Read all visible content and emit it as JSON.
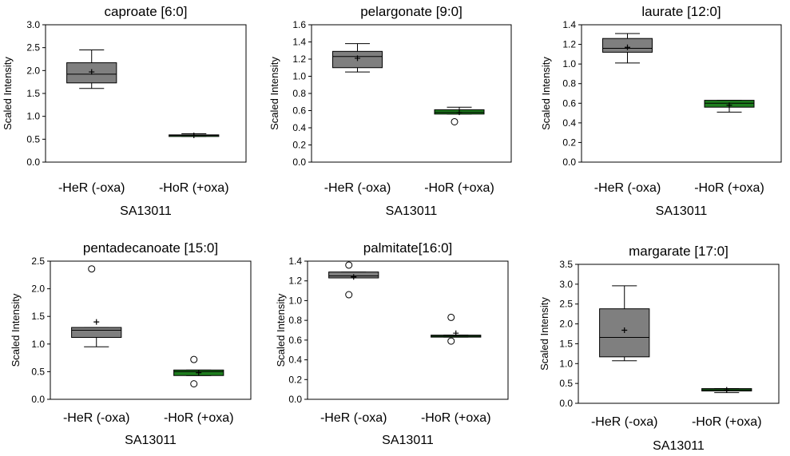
{
  "colors": {
    "group1": "#7f7f7f",
    "group2": "#1e7d1e",
    "axis": "#000000"
  },
  "chart_data": [
    {
      "type": "box",
      "title": "caproate [6:0]",
      "xlabel": "SA13011",
      "ylabel": "Scaled Intensity",
      "categories": [
        "-HeR (-oxa)",
        "-HoR (+oxa)"
      ],
      "ylim": [
        0,
        3.0
      ],
      "yticks": [
        "0.0",
        "0.5",
        "1.0",
        "1.5",
        "2.0",
        "2.5",
        "3.0"
      ],
      "boxes": [
        {
          "min": 1.61,
          "q1": 1.73,
          "median": 1.92,
          "q3": 2.17,
          "max": 2.45,
          "mean": 1.97,
          "outliers": []
        },
        {
          "min": 0.56,
          "q1": 0.575,
          "median": 0.585,
          "q3": 0.595,
          "max": 0.62,
          "mean": 0.585,
          "outliers": []
        }
      ]
    },
    {
      "type": "box",
      "title": "pelargonate [9:0]",
      "xlabel": "SA13011",
      "ylabel": "Scaled Intensity",
      "categories": [
        "-HeR (-oxa)",
        "-HoR (+oxa)"
      ],
      "ylim": [
        0,
        1.6
      ],
      "yticks": [
        "0.0",
        "0.2",
        "0.4",
        "0.6",
        "0.8",
        "1.0",
        "1.2",
        "1.4",
        "1.6"
      ],
      "boxes": [
        {
          "min": 1.05,
          "q1": 1.1,
          "median": 1.23,
          "q3": 1.29,
          "max": 1.38,
          "mean": 1.21,
          "outliers": []
        },
        {
          "min": 0.56,
          "q1": 0.56,
          "median": 0.58,
          "q3": 0.61,
          "max": 0.64,
          "mean": 0.58,
          "outliers": [
            0.47
          ]
        }
      ]
    },
    {
      "type": "box",
      "title": "laurate [12:0]",
      "xlabel": "SA13011",
      "ylabel": "Scaled Intensity",
      "categories": [
        "-HeR (-oxa)",
        "-HoR (+oxa)"
      ],
      "ylim": [
        0,
        1.4
      ],
      "yticks": [
        "0.0",
        "0.2",
        "0.4",
        "0.6",
        "0.8",
        "1.0",
        "1.2",
        "1.4"
      ],
      "boxes": [
        {
          "min": 1.01,
          "q1": 1.12,
          "median": 1.16,
          "q3": 1.26,
          "max": 1.31,
          "mean": 1.17,
          "outliers": []
        },
        {
          "min": 0.51,
          "q1": 0.56,
          "median": 0.6,
          "q3": 0.63,
          "max": 0.63,
          "mean": 0.58,
          "outliers": []
        }
      ]
    },
    {
      "type": "box",
      "title": "pentadecanoate [15:0]",
      "xlabel": "SA13011",
      "ylabel": "Scaled Intensity",
      "categories": [
        "-HeR (-oxa)",
        "-HoR (+oxa)"
      ],
      "ylim": [
        0,
        2.5
      ],
      "yticks": [
        "0.0",
        "0.5",
        "1.0",
        "1.5",
        "2.0",
        "2.5"
      ],
      "boxes": [
        {
          "min": 0.95,
          "q1": 1.12,
          "median": 1.25,
          "q3": 1.3,
          "max": 1.3,
          "mean": 1.4,
          "outliers": [
            2.36
          ]
        },
        {
          "min": 0.43,
          "q1": 0.43,
          "median": 0.5,
          "q3": 0.53,
          "max": 0.53,
          "mean": 0.48,
          "outliers": [
            0.72,
            0.28
          ]
        }
      ]
    },
    {
      "type": "box",
      "title": "palmitate[16:0]",
      "xlabel": "SA13011",
      "ylabel": "Scaled Intensity",
      "categories": [
        "-HeR (-oxa)",
        "-HoR (+oxa)"
      ],
      "ylim": [
        0,
        1.4
      ],
      "yticks": [
        "0.0",
        "0.2",
        "0.4",
        "0.6",
        "0.8",
        "1.0",
        "1.2",
        "1.4"
      ],
      "boxes": [
        {
          "min": 1.23,
          "q1": 1.23,
          "median": 1.25,
          "q3": 1.29,
          "max": 1.29,
          "mean": 1.24,
          "outliers": [
            1.36,
            1.06
          ]
        },
        {
          "min": 0.63,
          "q1": 0.63,
          "median": 0.64,
          "q3": 0.65,
          "max": 0.65,
          "mean": 0.67,
          "outliers": [
            0.83,
            0.59
          ]
        }
      ]
    },
    {
      "type": "box",
      "title": "margarate [17:0]",
      "xlabel": "SA13011",
      "ylabel": "Scaled Intensity",
      "categories": [
        "-HeR (-oxa)",
        "-HoR (+oxa)"
      ],
      "ylim": [
        0,
        3.5
      ],
      "yticks": [
        "0.0",
        "0.5",
        "1.0",
        "1.5",
        "2.0",
        "2.5",
        "3.0",
        "3.5"
      ],
      "boxes": [
        {
          "min": 1.07,
          "q1": 1.17,
          "median": 1.66,
          "q3": 2.38,
          "max": 2.96,
          "mean": 1.84,
          "outliers": []
        },
        {
          "min": 0.27,
          "q1": 0.31,
          "median": 0.34,
          "q3": 0.37,
          "max": 0.37,
          "mean": 0.34,
          "outliers": []
        }
      ]
    }
  ]
}
